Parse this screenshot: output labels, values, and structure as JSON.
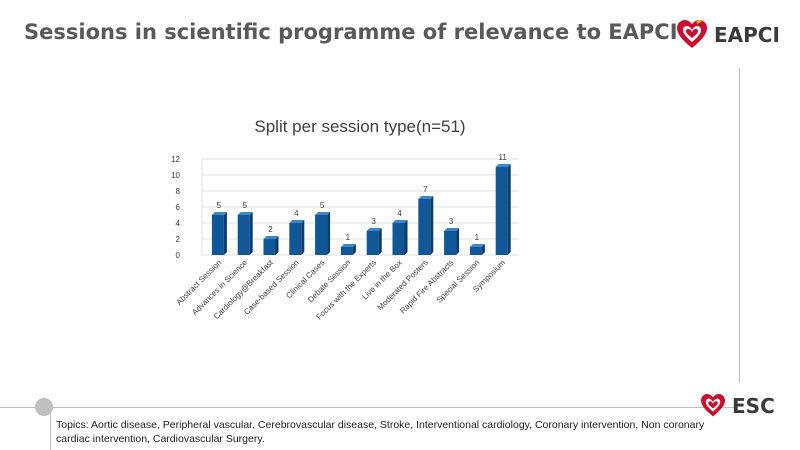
{
  "slide": {
    "title": "Sessions in scientific programme of relevance to EAPCI",
    "footnote": "Topics: Aortic disease, Peripheral vascular, Cerebrovascular disease, Stroke, Interventional cardiology, Coronary intervention, Non coronary cardiac intervention, Cardiovascular Surgery."
  },
  "brand": {
    "top_label": "EAPCI",
    "bottom_label": "ESC",
    "heart_color": "#c8102e",
    "accent_color": "#f5a623"
  },
  "colors": {
    "bar_front": "#0f5796",
    "bar_side": "#0a3d6b",
    "bar_top": "#3f86c9",
    "grid": "#d9d9d9"
  },
  "chart_data": {
    "type": "bar",
    "title": "Split per session type(n=51)",
    "xlabel": "",
    "ylabel": "",
    "ylim": [
      0,
      12
    ],
    "yticks": [
      0,
      2,
      4,
      6,
      8,
      10,
      12
    ],
    "grid": true,
    "legend": "none",
    "categories": [
      "Abstract Session",
      "Advances in Science",
      "Cardiology@Breakfast",
      "Case-based Session",
      "Clinical Cases",
      "Debate Session",
      "Focus with the Experts",
      "Live in the Box",
      "Moderated Posters",
      "Rapid Fire Abstracts",
      "Special Session",
      "Symposium"
    ],
    "values": [
      5,
      5,
      2,
      4,
      5,
      1,
      3,
      4,
      7,
      3,
      1,
      11
    ]
  }
}
